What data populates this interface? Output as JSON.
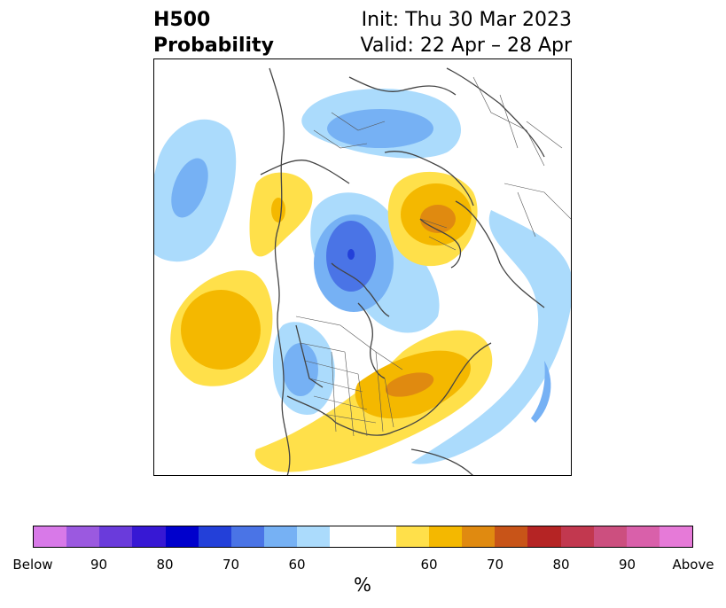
{
  "title": {
    "line1": "H500",
    "line2": "Probability",
    "init": "Init: Thu 30 Mar 2023",
    "valid": "Valid: 22 Apr – 28 Apr"
  },
  "colorbar": {
    "colors": [
      "#d879e8",
      "#9b59e0",
      "#6a3bdb",
      "#3718d4",
      "#0000cc",
      "#2340d9",
      "#4a74e6",
      "#76b1f4",
      "#abdbfc",
      "#ffffff",
      "#ffffff",
      "#ffe04a",
      "#f4b800",
      "#e08a10",
      "#c85418",
      "#b52424",
      "#c2384f",
      "#cc4f7f",
      "#d960aa",
      "#e67ad8"
    ],
    "ticks": [
      "Below",
      "90",
      "80",
      "70",
      "60",
      "60",
      "70",
      "80",
      "90",
      "Above"
    ],
    "unit": "%"
  },
  "map_legend": {
    "below_colors": {
      "60": "#abdbfc",
      "70": "#76b1f4",
      "80": "#4a74e6",
      "90": "#2340d9"
    },
    "above_colors": {
      "60": "#ffe04a",
      "70": "#f4b800",
      "80": "#e08a10"
    }
  }
}
